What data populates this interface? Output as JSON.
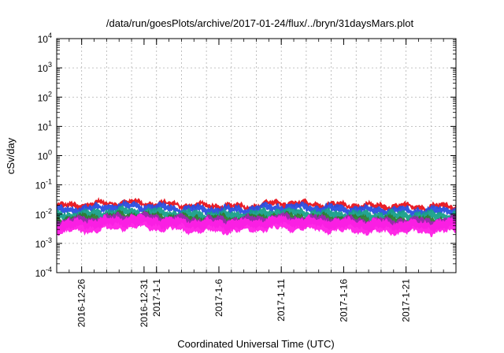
{
  "chart_data": {
    "type": "line",
    "title": "/data/run/goesPlots/archive/2017-01-24/flux/../bryn/31daysMars.plot",
    "xlabel": "Coordinated Universal Time (UTC)",
    "ylabel": "cSv/day",
    "yscale": "log",
    "ylim": [
      0.0001,
      10000
    ],
    "y_ticks": [
      {
        "base": "10",
        "exp": "-4"
      },
      {
        "base": "10",
        "exp": "-3"
      },
      {
        "base": "10",
        "exp": "-2"
      },
      {
        "base": "10",
        "exp": "-1"
      },
      {
        "base": "10",
        "exp": "0"
      },
      {
        "base": "10",
        "exp": "1"
      },
      {
        "base": "10",
        "exp": "2"
      },
      {
        "base": "10",
        "exp": "3"
      },
      {
        "base": "10",
        "exp": "4"
      }
    ],
    "xlim": [
      "2016-12-24",
      "2017-01-25"
    ],
    "x_ticks": [
      {
        "label": "2016-12-26",
        "date": "2016-12-26"
      },
      {
        "label": "2016-12-31",
        "date": "2016-12-31"
      },
      {
        "label": "2017-1-1",
        "date": "2017-01-01"
      },
      {
        "label": "2017-1-6",
        "date": "2017-01-06"
      },
      {
        "label": "2017-1-11",
        "date": "2017-01-11"
      },
      {
        "label": "2017-1-16",
        "date": "2017-01-16"
      },
      {
        "label": "2017-1-21",
        "date": "2017-01-21"
      }
    ],
    "grid": true,
    "legend": "none",
    "series": [
      {
        "color": "#e8141e",
        "x": [
          "2016-12-24",
          "2016-12-27",
          "2016-12-30",
          "2017-01-02",
          "2017-01-05",
          "2017-01-08",
          "2017-01-11",
          "2017-01-14",
          "2017-01-17",
          "2017-01-20",
          "2017-01-23",
          "2017-01-25"
        ],
        "values": [
          0.018,
          0.022,
          0.025,
          0.021,
          0.019,
          0.018,
          0.024,
          0.021,
          0.019,
          0.018,
          0.018,
          0.019
        ]
      },
      {
        "color": "#2a4fe0",
        "x": [
          "2016-12-24",
          "2016-12-27",
          "2016-12-30",
          "2017-01-02",
          "2017-01-05",
          "2017-01-08",
          "2017-01-11",
          "2017-01-14",
          "2017-01-17",
          "2017-01-20",
          "2017-01-23",
          "2017-01-25"
        ],
        "values": [
          0.013,
          0.016,
          0.019,
          0.016,
          0.014,
          0.014,
          0.018,
          0.016,
          0.014,
          0.013,
          0.013,
          0.014
        ]
      },
      {
        "color": "#18a08a",
        "x": [
          "2016-12-24",
          "2016-12-27",
          "2016-12-30",
          "2017-01-02",
          "2017-01-05",
          "2017-01-08",
          "2017-01-11",
          "2017-01-14",
          "2017-01-17",
          "2017-01-20",
          "2017-01-23",
          "2017-01-25"
        ],
        "values": [
          0.0085,
          0.01,
          0.012,
          0.01,
          0.009,
          0.009,
          0.0115,
          0.01,
          0.009,
          0.0085,
          0.0085,
          0.009
        ]
      },
      {
        "color": "#2e7d32",
        "x": [
          "2016-12-24",
          "2016-12-27",
          "2016-12-30",
          "2017-01-02",
          "2017-01-05",
          "2017-01-08",
          "2017-01-11",
          "2017-01-14",
          "2017-01-17",
          "2017-01-20",
          "2017-01-23",
          "2017-01-25"
        ],
        "values": [
          0.0055,
          0.0065,
          0.008,
          0.0068,
          0.006,
          0.006,
          0.0075,
          0.0065,
          0.006,
          0.0055,
          0.0055,
          0.006
        ]
      },
      {
        "color": "#9c27b0",
        "x": [
          "2016-12-24",
          "2016-12-27",
          "2016-12-30",
          "2017-01-02",
          "2017-01-05",
          "2017-01-08",
          "2017-01-11",
          "2017-01-14",
          "2017-01-17",
          "2017-01-20",
          "2017-01-23",
          "2017-01-25"
        ],
        "values": [
          0.0045,
          0.0055,
          0.0068,
          0.0057,
          0.005,
          0.005,
          0.0063,
          0.0055,
          0.005,
          0.0046,
          0.0046,
          0.005
        ]
      },
      {
        "color": "#ff1fe6",
        "x": [
          "2016-12-24",
          "2016-12-27",
          "2016-12-30",
          "2017-01-02",
          "2017-01-05",
          "2017-01-08",
          "2017-01-11",
          "2017-01-14",
          "2017-01-17",
          "2017-01-20",
          "2017-01-23",
          "2017-01-25"
        ],
        "values": [
          0.0035,
          0.0042,
          0.0055,
          0.0045,
          0.0039,
          0.004,
          0.005,
          0.0043,
          0.0039,
          0.0036,
          0.0036,
          0.004
        ]
      }
    ]
  }
}
